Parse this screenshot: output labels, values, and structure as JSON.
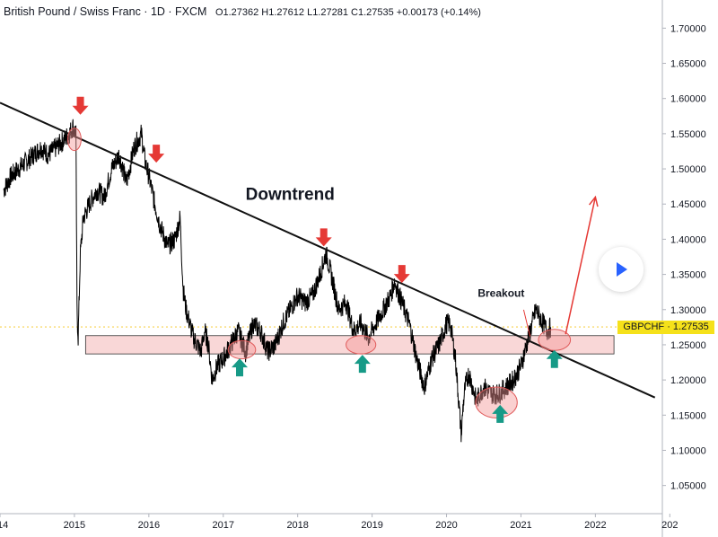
{
  "header": {
    "title": "British Pound / Swiss Franc · 1D · FXCM",
    "ohlc": "O1.27362 H1.27612 L1.27281 C1.27535 +0.00173 (+0.14%)"
  },
  "price_tag": {
    "label": "GBPCHF · 1.27535"
  },
  "icons": {
    "play": "play-icon"
  },
  "colors": {
    "price": "#000000",
    "trendline": "#111111",
    "arrow_down": "#e53935",
    "arrow_up": "#179a87",
    "highlight_fill": "#f4b6b6",
    "projection": "#e53935",
    "price_tag": "#f5e11a"
  },
  "chart_data": {
    "type": "line",
    "symbol": "GBPCHF",
    "timeframe": "1D",
    "x_ticks": [
      "014",
      "2015",
      "2016",
      "2017",
      "2018",
      "2019",
      "2020",
      "2021",
      "2022",
      "202"
    ],
    "y_ticks": [
      "1.05000",
      "1.10000",
      "1.15000",
      "1.20000",
      "1.25000",
      "1.30000",
      "1.35000",
      "1.40000",
      "1.45000",
      "1.50000",
      "1.55000",
      "1.60000",
      "1.65000",
      "1.70000"
    ],
    "ylim": [
      1.01,
      1.74
    ],
    "xlim": [
      2014.0,
      2022.9
    ],
    "last_price": 1.27535,
    "series": [
      {
        "x": [
          2014.05,
          2014.15,
          2014.25,
          2014.35,
          2014.45,
          2014.55,
          2014.65,
          2014.75,
          2014.85,
          2014.93,
          2014.98,
          2015.02,
          2015.035,
          2015.05,
          2015.08,
          2015.12,
          2015.2,
          2015.3,
          2015.4,
          2015.5,
          2015.6,
          2015.7,
          2015.8,
          2015.85,
          2015.9,
          2015.95,
          2016.0,
          2016.08,
          2016.15,
          2016.25,
          2016.35,
          2016.42,
          2016.46,
          2016.5,
          2016.6,
          2016.7,
          2016.75,
          2016.8,
          2016.85,
          2016.92,
          2017.0,
          2017.1,
          2017.2,
          2017.3,
          2017.4,
          2017.5,
          2017.6,
          2017.7,
          2017.8,
          2017.9,
          2018.0,
          2018.1,
          2018.2,
          2018.3,
          2018.38,
          2018.45,
          2018.55,
          2018.65,
          2018.75,
          2018.85,
          2018.95,
          2019.05,
          2019.15,
          2019.25,
          2019.3,
          2019.4,
          2019.5,
          2019.6,
          2019.7,
          2019.8,
          2019.9,
          2020.0,
          2020.05,
          2020.12,
          2020.2,
          2020.22,
          2020.25,
          2020.3,
          2020.4,
          2020.5,
          2020.6,
          2020.7,
          2020.8,
          2020.9,
          2021.0,
          2021.1,
          2021.2,
          2021.25,
          2021.3,
          2021.35,
          2021.4
        ],
        "y": [
          1.47,
          1.49,
          1.5,
          1.51,
          1.52,
          1.53,
          1.52,
          1.53,
          1.54,
          1.55,
          1.56,
          1.55,
          1.3,
          1.26,
          1.38,
          1.43,
          1.45,
          1.47,
          1.46,
          1.5,
          1.52,
          1.48,
          1.53,
          1.54,
          1.55,
          1.51,
          1.49,
          1.45,
          1.42,
          1.39,
          1.4,
          1.43,
          1.33,
          1.3,
          1.26,
          1.24,
          1.27,
          1.25,
          1.2,
          1.22,
          1.23,
          1.25,
          1.27,
          1.24,
          1.28,
          1.27,
          1.24,
          1.25,
          1.28,
          1.3,
          1.32,
          1.31,
          1.32,
          1.35,
          1.38,
          1.35,
          1.3,
          1.31,
          1.27,
          1.28,
          1.26,
          1.28,
          1.3,
          1.32,
          1.34,
          1.31,
          1.28,
          1.23,
          1.19,
          1.23,
          1.25,
          1.28,
          1.28,
          1.23,
          1.12,
          1.16,
          1.19,
          1.21,
          1.17,
          1.19,
          1.18,
          1.18,
          1.19,
          1.2,
          1.22,
          1.26,
          1.3,
          1.29,
          1.28,
          1.27,
          1.275
        ]
      }
    ],
    "annotations": {
      "title_text": "Downtrend",
      "breakout_text": "Breakout",
      "trendline": [
        [
          2014.0,
          1.594
        ],
        [
          2022.8,
          1.175
        ]
      ],
      "support_zone": {
        "x": [
          2015.15,
          2022.25
        ],
        "y": [
          1.237,
          1.263
        ]
      },
      "down_arrows": [
        [
          2015.08,
          1.582
        ],
        [
          2016.1,
          1.514
        ],
        [
          2018.35,
          1.395
        ],
        [
          2019.4,
          1.343
        ]
      ],
      "up_arrows": [
        [
          2017.22,
          1.223
        ],
        [
          2018.87,
          1.228
        ],
        [
          2020.72,
          1.157
        ],
        [
          2021.45,
          1.235
        ]
      ],
      "ellipses": [
        [
          2015.0,
          1.542,
          0.18,
          0.016
        ],
        [
          2017.25,
          1.243,
          0.37,
          0.013
        ],
        [
          2018.85,
          1.25,
          0.4,
          0.013
        ],
        [
          2020.67,
          1.168,
          0.56,
          0.022
        ],
        [
          2021.45,
          1.257,
          0.43,
          0.015
        ]
      ],
      "projection": [
        [
          2021.6,
          1.265
        ],
        [
          2022.0,
          1.46
        ]
      ],
      "breakout_pointer": [
        [
          2021.0,
          1.31
        ],
        [
          2021.05,
          1.262
        ]
      ]
    }
  }
}
